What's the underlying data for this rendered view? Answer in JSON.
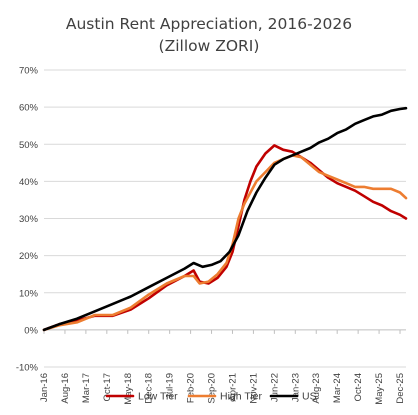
{
  "chart_data": {
    "type": "line",
    "title_lines": [
      "Austin Rent Appreciation, 2016-2026",
      "(Zillow ZORI)"
    ],
    "xlabel": "",
    "ylabel": "",
    "ylim": [
      -0.1,
      0.7
    ],
    "xlim": [
      "2016-01",
      "2026-02"
    ],
    "yticks": [
      -0.1,
      0.0,
      0.1,
      0.2,
      0.3,
      0.4,
      0.5,
      0.6,
      0.7
    ],
    "ytick_labels": [
      "-10%",
      "0%",
      "10%",
      "20%",
      "30%",
      "40%",
      "50%",
      "60%",
      "70%"
    ],
    "xticks": [
      "2016-01",
      "2016-08",
      "2017-03",
      "2017-10",
      "2018-05",
      "2018-12",
      "2019-07",
      "2020-02",
      "2020-09",
      "2021-04",
      "2021-11",
      "2022-06",
      "2023-01",
      "2023-08",
      "2024-03",
      "2024-10",
      "2025-05",
      "2025-12"
    ],
    "xtick_labels": [
      "Jan-16",
      "Aug-16",
      "Mar-17",
      "Oct-17",
      "May-18",
      "Dec-18",
      "Jul-19",
      "Feb-20",
      "Sep-20",
      "Apr-21",
      "Nov-21",
      "Jun-22",
      "Jan-23",
      "Aug-23",
      "Mar-24",
      "Oct-24",
      "May-25",
      "Dec-25"
    ],
    "grid": "horizontal",
    "legend_position": "bottom",
    "series": [
      {
        "name": "Low Tier",
        "color": "#c00000",
        "points": [
          [
            "2016-01",
            0.0
          ],
          [
            "2016-06",
            0.015
          ],
          [
            "2016-12",
            0.025
          ],
          [
            "2017-06",
            0.038
          ],
          [
            "2017-12",
            0.038
          ],
          [
            "2018-06",
            0.055
          ],
          [
            "2018-12",
            0.085
          ],
          [
            "2019-06",
            0.12
          ],
          [
            "2019-12",
            0.145
          ],
          [
            "2020-03",
            0.16
          ],
          [
            "2020-05",
            0.13
          ],
          [
            "2020-08",
            0.125
          ],
          [
            "2020-11",
            0.14
          ],
          [
            "2021-02",
            0.17
          ],
          [
            "2021-04",
            0.21
          ],
          [
            "2021-06",
            0.28
          ],
          [
            "2021-08",
            0.35
          ],
          [
            "2021-10",
            0.4
          ],
          [
            "2021-12",
            0.44
          ],
          [
            "2022-03",
            0.475
          ],
          [
            "2022-06",
            0.497
          ],
          [
            "2022-09",
            0.485
          ],
          [
            "2022-12",
            0.48
          ],
          [
            "2023-03",
            0.465
          ],
          [
            "2023-06",
            0.45
          ],
          [
            "2023-09",
            0.43
          ],
          [
            "2023-12",
            0.41
          ],
          [
            "2024-03",
            0.395
          ],
          [
            "2024-06",
            0.385
          ],
          [
            "2024-09",
            0.375
          ],
          [
            "2024-12",
            0.36
          ],
          [
            "2025-03",
            0.345
          ],
          [
            "2025-06",
            0.335
          ],
          [
            "2025-09",
            0.32
          ],
          [
            "2025-12",
            0.31
          ],
          [
            "2026-02",
            0.3
          ]
        ]
      },
      {
        "name": "High Tier",
        "color": "#ed7d31",
        "points": [
          [
            "2016-01",
            0.0
          ],
          [
            "2016-06",
            0.012
          ],
          [
            "2016-12",
            0.02
          ],
          [
            "2017-06",
            0.04
          ],
          [
            "2017-12",
            0.04
          ],
          [
            "2018-06",
            0.06
          ],
          [
            "2018-12",
            0.095
          ],
          [
            "2019-06",
            0.125
          ],
          [
            "2019-12",
            0.145
          ],
          [
            "2020-03",
            0.145
          ],
          [
            "2020-05",
            0.125
          ],
          [
            "2020-08",
            0.13
          ],
          [
            "2020-11",
            0.15
          ],
          [
            "2021-02",
            0.18
          ],
          [
            "2021-04",
            0.23
          ],
          [
            "2021-06",
            0.3
          ],
          [
            "2021-08",
            0.34
          ],
          [
            "2021-10",
            0.37
          ],
          [
            "2021-12",
            0.4
          ],
          [
            "2022-03",
            0.425
          ],
          [
            "2022-06",
            0.45
          ],
          [
            "2022-09",
            0.46
          ],
          [
            "2022-12",
            0.47
          ],
          [
            "2023-03",
            0.465
          ],
          [
            "2023-06",
            0.445
          ],
          [
            "2023-09",
            0.425
          ],
          [
            "2023-12",
            0.415
          ],
          [
            "2024-03",
            0.405
          ],
          [
            "2024-06",
            0.395
          ],
          [
            "2024-09",
            0.385
          ],
          [
            "2024-12",
            0.385
          ],
          [
            "2025-03",
            0.38
          ],
          [
            "2025-06",
            0.38
          ],
          [
            "2025-09",
            0.38
          ],
          [
            "2025-12",
            0.37
          ],
          [
            "2026-02",
            0.355
          ]
        ]
      },
      {
        "name": "US",
        "color": "#000000",
        "points": [
          [
            "2016-01",
            0.0
          ],
          [
            "2016-06",
            0.015
          ],
          [
            "2016-12",
            0.03
          ],
          [
            "2017-06",
            0.05
          ],
          [
            "2017-12",
            0.07
          ],
          [
            "2018-06",
            0.09
          ],
          [
            "2018-12",
            0.115
          ],
          [
            "2019-06",
            0.14
          ],
          [
            "2019-12",
            0.165
          ],
          [
            "2020-03",
            0.18
          ],
          [
            "2020-06",
            0.17
          ],
          [
            "2020-09",
            0.175
          ],
          [
            "2020-12",
            0.185
          ],
          [
            "2021-03",
            0.21
          ],
          [
            "2021-06",
            0.255
          ],
          [
            "2021-09",
            0.32
          ],
          [
            "2021-12",
            0.37
          ],
          [
            "2022-03",
            0.41
          ],
          [
            "2022-06",
            0.445
          ],
          [
            "2022-09",
            0.46
          ],
          [
            "2022-12",
            0.47
          ],
          [
            "2023-03",
            0.48
          ],
          [
            "2023-06",
            0.49
          ],
          [
            "2023-09",
            0.505
          ],
          [
            "2023-12",
            0.515
          ],
          [
            "2024-03",
            0.53
          ],
          [
            "2024-06",
            0.54
          ],
          [
            "2024-09",
            0.555
          ],
          [
            "2024-12",
            0.565
          ],
          [
            "2025-03",
            0.575
          ],
          [
            "2025-06",
            0.58
          ],
          [
            "2025-09",
            0.59
          ],
          [
            "2025-12",
            0.595
          ],
          [
            "2026-02",
            0.597
          ]
        ]
      }
    ]
  }
}
